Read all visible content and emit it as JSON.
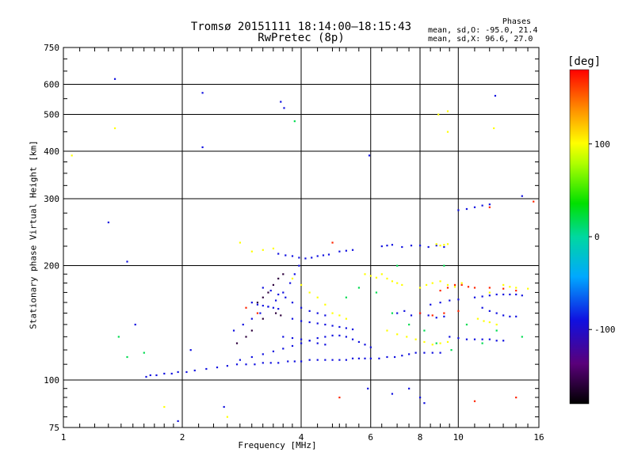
{
  "title": "Tromsø 20151111 18:14:00–18:15:43",
  "subtitle": "RwPretec (8p)",
  "phases": {
    "label": "Phases",
    "o_line": "mean, sd,O: -95.0, 21.4",
    "x_line": "mean, sd,X:  96.6, 27.0"
  },
  "chart_data": {
    "type": "scatter",
    "xlabel": "Frequency [MHz]",
    "ylabel": "Stationary phase Virtual Height [km]",
    "xscale": "log",
    "yscale": "log",
    "xlim": [
      1,
      16
    ],
    "ylim": [
      75,
      750
    ],
    "xticks": [
      1,
      2,
      4,
      6,
      8,
      10,
      16
    ],
    "yticks": [
      75,
      100,
      200,
      300,
      400,
      500,
      600,
      750
    ],
    "xgrid": [
      2,
      4,
      6,
      8,
      10
    ],
    "ygrid": [
      100,
      200,
      300,
      400,
      500,
      600
    ],
    "colorbar": {
      "label": "[deg]",
      "ticks": [
        100,
        0,
        -100
      ],
      "range": [
        -180,
        180
      ],
      "colormap": "rainbow"
    },
    "series": [
      {
        "phase": -100,
        "points": [
          [
            1.62,
            102
          ],
          [
            1.66,
            103
          ],
          [
            1.72,
            103
          ],
          [
            1.8,
            104
          ],
          [
            1.88,
            104
          ],
          [
            1.95,
            105
          ],
          [
            2.05,
            105
          ],
          [
            2.15,
            106
          ],
          [
            2.3,
            107
          ],
          [
            2.45,
            108
          ],
          [
            2.6,
            109
          ],
          [
            2.75,
            110
          ],
          [
            2.9,
            110
          ],
          [
            3.05,
            110
          ],
          [
            3.2,
            111
          ],
          [
            3.35,
            111
          ],
          [
            3.5,
            111
          ],
          [
            3.7,
            112
          ],
          [
            3.85,
            112
          ],
          [
            4.0,
            112
          ],
          [
            4.2,
            113
          ],
          [
            4.4,
            113
          ],
          [
            4.6,
            113
          ],
          [
            4.8,
            113
          ],
          [
            5.0,
            113
          ],
          [
            5.2,
            113
          ],
          [
            5.4,
            114
          ],
          [
            5.6,
            114
          ],
          [
            5.8,
            114
          ],
          [
            6.0,
            114
          ],
          [
            6.3,
            114
          ],
          [
            6.6,
            115
          ],
          [
            6.9,
            115
          ],
          [
            7.2,
            116
          ],
          [
            7.5,
            117
          ],
          [
            7.8,
            118
          ],
          [
            8.2,
            118
          ],
          [
            8.6,
            118
          ],
          [
            9.0,
            118
          ],
          [
            2.8,
            113
          ],
          [
            3.0,
            115
          ],
          [
            3.2,
            117
          ],
          [
            3.4,
            119
          ],
          [
            3.6,
            121
          ],
          [
            3.8,
            123
          ],
          [
            4.0,
            125
          ],
          [
            4.2,
            127
          ],
          [
            4.4,
            129
          ],
          [
            4.6,
            130
          ],
          [
            4.8,
            131
          ],
          [
            5.0,
            131
          ],
          [
            5.2,
            130
          ],
          [
            5.4,
            128
          ],
          [
            5.6,
            126
          ],
          [
            5.8,
            124
          ],
          [
            6.0,
            122
          ],
          [
            2.7,
            135
          ],
          [
            2.85,
            140
          ],
          [
            3.0,
            145
          ],
          [
            3.15,
            150
          ],
          [
            3.3,
            156
          ],
          [
            3.45,
            162
          ],
          [
            3.6,
            170
          ],
          [
            3.75,
            180
          ],
          [
            3.85,
            190
          ],
          [
            3.95,
            200
          ],
          [
            3.0,
            160
          ],
          [
            3.1,
            158
          ],
          [
            3.2,
            157
          ],
          [
            3.3,
            156
          ],
          [
            3.4,
            155
          ],
          [
            3.5,
            154
          ],
          [
            3.2,
            175
          ],
          [
            3.35,
            172
          ],
          [
            3.5,
            168
          ],
          [
            3.65,
            165
          ],
          [
            3.8,
            160
          ],
          [
            3.8,
            145
          ],
          [
            4.0,
            143
          ],
          [
            4.2,
            142
          ],
          [
            4.4,
            141
          ],
          [
            4.6,
            140
          ],
          [
            4.8,
            139
          ],
          [
            5.0,
            138
          ],
          [
            5.2,
            137
          ],
          [
            5.4,
            136
          ],
          [
            3.6,
            130
          ],
          [
            3.8,
            129
          ],
          [
            4.0,
            128
          ],
          [
            4.2,
            127
          ],
          [
            4.4,
            125
          ],
          [
            4.6,
            124
          ],
          [
            4.0,
            155
          ],
          [
            4.2,
            152
          ],
          [
            4.4,
            150
          ],
          [
            4.6,
            148
          ],
          [
            3.5,
            215
          ],
          [
            3.65,
            213
          ],
          [
            3.8,
            212
          ],
          [
            3.95,
            210
          ],
          [
            4.1,
            209
          ],
          [
            4.25,
            210
          ],
          [
            4.4,
            212
          ],
          [
            4.55,
            213
          ],
          [
            4.7,
            214
          ],
          [
            5.0,
            218
          ],
          [
            5.2,
            219
          ],
          [
            5.4,
            220
          ],
          [
            6.4,
            225
          ],
          [
            6.6,
            226
          ],
          [
            6.8,
            227
          ],
          [
            7.2,
            224
          ],
          [
            7.6,
            226
          ],
          [
            8.0,
            226
          ],
          [
            8.4,
            224
          ],
          [
            8.8,
            226
          ],
          [
            9.2,
            224
          ],
          [
            7.0,
            150
          ],
          [
            7.3,
            152
          ],
          [
            7.6,
            148
          ],
          [
            8.0,
            150
          ],
          [
            8.4,
            148
          ],
          [
            8.8,
            146
          ],
          [
            9.2,
            147
          ],
          [
            8.5,
            158
          ],
          [
            9.0,
            160
          ],
          [
            9.5,
            162
          ],
          [
            10.0,
            163
          ],
          [
            9.5,
            130
          ],
          [
            10.0,
            129
          ],
          [
            10.5,
            128
          ],
          [
            11.0,
            128
          ],
          [
            11.5,
            128
          ],
          [
            12.0,
            128
          ],
          [
            12.5,
            127
          ],
          [
            13.0,
            127
          ],
          [
            10.0,
            280
          ],
          [
            10.5,
            282
          ],
          [
            11.0,
            285
          ],
          [
            11.5,
            288
          ],
          [
            12.0,
            290
          ],
          [
            11.0,
            165
          ],
          [
            11.5,
            166
          ],
          [
            12.0,
            167
          ],
          [
            12.5,
            168
          ],
          [
            13.0,
            168
          ],
          [
            13.5,
            168
          ],
          [
            14.0,
            168
          ],
          [
            14.5,
            167
          ],
          [
            11.5,
            155
          ],
          [
            12.0,
            152
          ],
          [
            12.5,
            150
          ],
          [
            13.0,
            148
          ],
          [
            13.5,
            147
          ],
          [
            14.0,
            147
          ],
          [
            1.35,
            620
          ],
          [
            2.25,
            570
          ],
          [
            2.25,
            410
          ],
          [
            3.55,
            540
          ],
          [
            3.62,
            520
          ],
          [
            5.95,
            390
          ],
          [
            12.4,
            560
          ],
          [
            14.5,
            305
          ],
          [
            1.45,
            205
          ],
          [
            1.3,
            260
          ],
          [
            1.52,
            140
          ],
          [
            2.1,
            120
          ],
          [
            2.55,
            85
          ],
          [
            1.95,
            78
          ],
          [
            5.9,
            95
          ],
          [
            6.8,
            92
          ],
          [
            7.5,
            95
          ],
          [
            8.0,
            90
          ],
          [
            8.2,
            87
          ]
        ]
      },
      {
        "phase": 100,
        "points": [
          [
            1.05,
            390
          ],
          [
            1.35,
            460
          ],
          [
            8.9,
            500
          ],
          [
            9.4,
            510
          ],
          [
            12.3,
            460
          ],
          [
            1.8,
            85
          ],
          [
            2.6,
            80
          ],
          [
            9.4,
            450
          ],
          [
            3.8,
            185
          ],
          [
            4.0,
            178
          ],
          [
            4.2,
            170
          ],
          [
            4.4,
            165
          ],
          [
            4.6,
            158
          ],
          [
            4.8,
            150
          ],
          [
            5.0,
            148
          ],
          [
            5.2,
            145
          ],
          [
            5.8,
            190
          ],
          [
            6.0,
            188
          ],
          [
            6.2,
            186
          ],
          [
            6.4,
            190
          ],
          [
            6.6,
            185
          ],
          [
            6.8,
            182
          ],
          [
            7.0,
            180
          ],
          [
            7.2,
            178
          ],
          [
            8.0,
            175
          ],
          [
            8.3,
            178
          ],
          [
            8.6,
            180
          ],
          [
            9.0,
            182
          ],
          [
            9.4,
            178
          ],
          [
            9.8,
            176
          ],
          [
            10.2,
            180
          ],
          [
            6.6,
            135
          ],
          [
            7.0,
            132
          ],
          [
            7.4,
            130
          ],
          [
            7.8,
            128
          ],
          [
            8.2,
            126
          ],
          [
            8.6,
            124
          ],
          [
            9.0,
            125
          ],
          [
            9.4,
            126
          ],
          [
            8.8,
            228
          ],
          [
            9.0,
            226
          ],
          [
            9.2,
            227
          ],
          [
            9.4,
            228
          ],
          [
            13.0,
            178
          ],
          [
            13.5,
            176
          ],
          [
            14.0,
            175
          ],
          [
            15.0,
            174
          ],
          [
            12.0,
            170
          ],
          [
            11.2,
            145
          ],
          [
            11.6,
            143
          ],
          [
            12.0,
            142
          ],
          [
            12.5,
            140
          ],
          [
            3.0,
            218
          ],
          [
            3.2,
            220
          ],
          [
            3.4,
            222
          ],
          [
            2.8,
            230
          ]
        ]
      },
      {
        "phase": 170,
        "points": [
          [
            9.0,
            172
          ],
          [
            9.4,
            175
          ],
          [
            9.8,
            178
          ],
          [
            10.2,
            178
          ],
          [
            10.6,
            176
          ],
          [
            11.0,
            175
          ],
          [
            12.0,
            175
          ],
          [
            13.0,
            174
          ],
          [
            14.0,
            172
          ],
          [
            8.0,
            150
          ],
          [
            8.6,
            148
          ],
          [
            9.2,
            150
          ],
          [
            10.0,
            152
          ],
          [
            5.0,
            90
          ],
          [
            11.0,
            88
          ],
          [
            14.0,
            90
          ],
          [
            15.5,
            295
          ],
          [
            12.0,
            285
          ],
          [
            4.8,
            230
          ],
          [
            3.1,
            150
          ],
          [
            2.9,
            155
          ]
        ]
      },
      {
        "phase": 20,
        "points": [
          [
            1.38,
            130
          ],
          [
            1.45,
            115
          ],
          [
            1.6,
            118
          ],
          [
            3.85,
            480
          ],
          [
            5.2,
            165
          ],
          [
            5.6,
            175
          ],
          [
            6.2,
            170
          ],
          [
            6.8,
            150
          ],
          [
            7.5,
            140
          ],
          [
            8.2,
            135
          ],
          [
            8.8,
            125
          ],
          [
            9.6,
            120
          ],
          [
            10.5,
            140
          ],
          [
            11.5,
            125
          ],
          [
            12.5,
            135
          ],
          [
            14.5,
            130
          ],
          [
            7.0,
            200
          ],
          [
            9.2,
            200
          ]
        ]
      },
      {
        "phase": -160,
        "points": [
          [
            3.1,
            160
          ],
          [
            3.2,
            165
          ],
          [
            3.3,
            170
          ],
          [
            3.4,
            178
          ],
          [
            3.5,
            185
          ],
          [
            3.6,
            190
          ],
          [
            3.45,
            150
          ],
          [
            3.55,
            148
          ],
          [
            3.2,
            145
          ],
          [
            3.0,
            135
          ],
          [
            2.9,
            130
          ],
          [
            2.75,
            125
          ]
        ]
      }
    ]
  }
}
